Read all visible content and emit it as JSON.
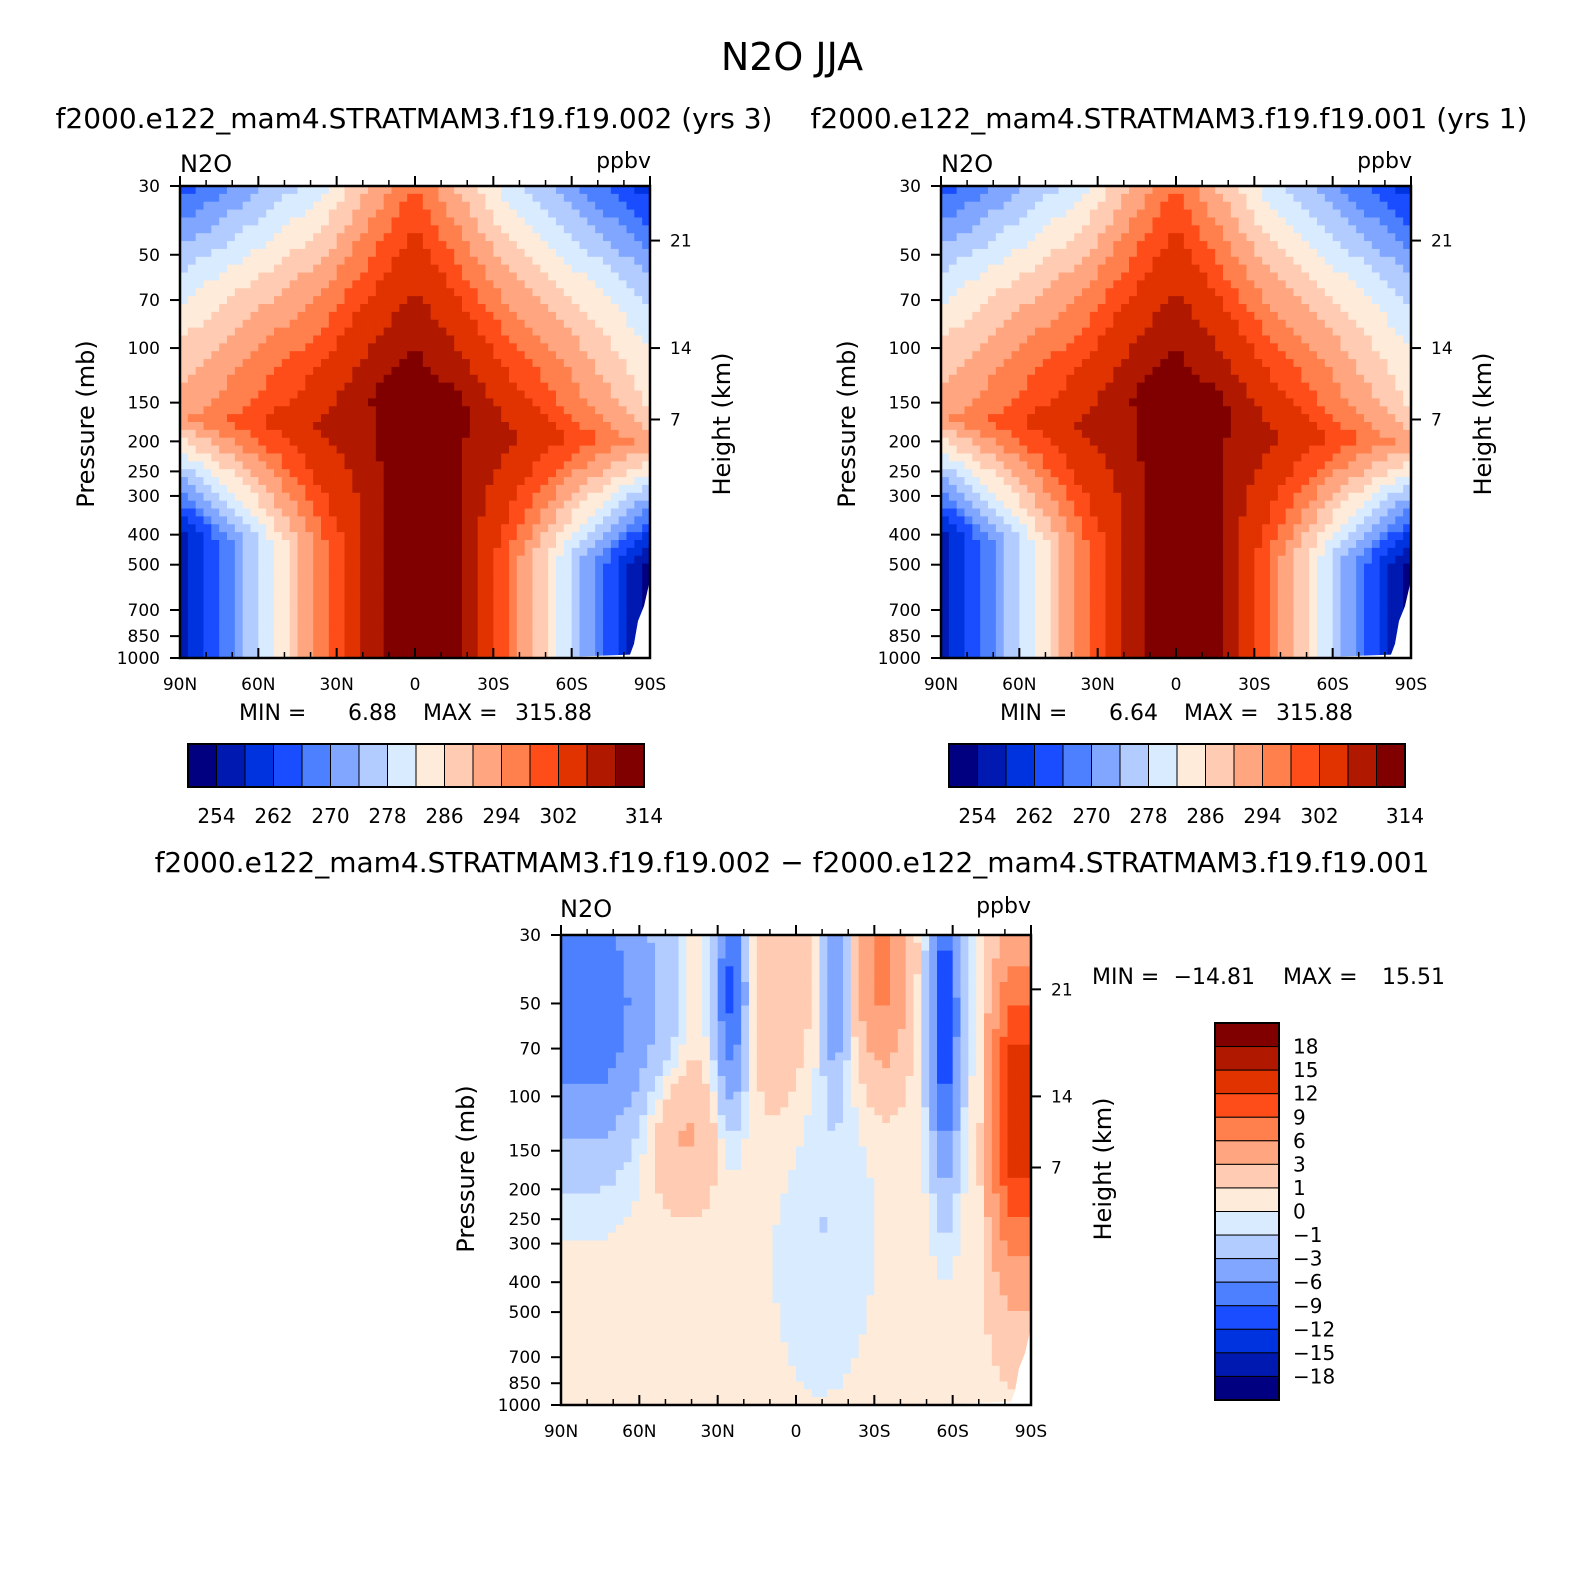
{
  "page": {
    "title": "N2O JJA"
  },
  "colors": {
    "abs_palette": [
      "#000080",
      "#0019b0",
      "#0033e0",
      "#1a4dff",
      "#4d80ff",
      "#80a6ff",
      "#b3ccff",
      "#d9ebff",
      "#ffebd9",
      "#ffccb3",
      "#ffa680",
      "#ff804d",
      "#ff4d1a",
      "#e03300",
      "#b01900",
      "#800000"
    ],
    "diff_palette": [
      "#000080",
      "#0019b0",
      "#0033e0",
      "#1a4dff",
      "#4d80ff",
      "#80a6ff",
      "#b3ccff",
      "#d9ebff",
      "#ffebd9",
      "#ffccb3",
      "#ffa680",
      "#ff804d",
      "#ff4d1a",
      "#e03300",
      "#b01900",
      "#800000"
    ]
  },
  "chart_data": [
    {
      "type": "heatmap",
      "id": "panel1",
      "title": "f2000.e122_mam4.STRATMAM3.f19.f19.002 (yrs 3)",
      "left_label": "N2O",
      "right_label": "ppbv",
      "ylabel": "Pressure (mb)",
      "ylabel_right": "Height (km)",
      "x_ticks": [
        "90N",
        "60N",
        "30N",
        "0",
        "30S",
        "60S",
        "90S"
      ],
      "y_ticks": [
        "30",
        "50",
        "70",
        "100",
        "150",
        "200",
        "250",
        "300",
        "400",
        "500",
        "700",
        "850",
        "1000"
      ],
      "height_ticks": [
        "21",
        "14",
        "7"
      ],
      "min_label": "MIN =",
      "max_label": "MAX =",
      "min": "6.88",
      "max": "315.88",
      "colorbar_labels": [
        "254",
        "262",
        "270",
        "278",
        "286",
        "294",
        "302",
        "314"
      ],
      "field": "n2o",
      "lat_range": [
        90,
        -90
      ],
      "p_range": [
        30,
        1000
      ]
    },
    {
      "type": "heatmap",
      "id": "panel2",
      "title": "f2000.e122_mam4.STRATMAM3.f19.f19.001 (yrs 1)",
      "left_label": "N2O",
      "right_label": "ppbv",
      "ylabel": "Pressure (mb)",
      "ylabel_right": "Height (km)",
      "x_ticks": [
        "90N",
        "60N",
        "30N",
        "0",
        "30S",
        "60S",
        "90S"
      ],
      "y_ticks": [
        "30",
        "50",
        "70",
        "100",
        "150",
        "200",
        "250",
        "300",
        "400",
        "500",
        "700",
        "850",
        "1000"
      ],
      "height_ticks": [
        "21",
        "14",
        "7"
      ],
      "min_label": "MIN =",
      "max_label": "MAX =",
      "min": "6.64",
      "max": "315.88",
      "colorbar_labels": [
        "254",
        "262",
        "270",
        "278",
        "286",
        "294",
        "302",
        "314"
      ],
      "field": "n2o",
      "lat_range": [
        90,
        -90
      ],
      "p_range": [
        30,
        1000
      ]
    },
    {
      "type": "heatmap",
      "id": "panel3",
      "title": "f2000.e122_mam4.STRATMAM3.f19.f19.002 − f2000.e122_mam4.STRATMAM3.f19.f19.001",
      "left_label": "N2O",
      "right_label": "ppbv",
      "ylabel": "Pressure (mb)",
      "ylabel_right": "Height (km)",
      "x_ticks": [
        "90N",
        "60N",
        "30N",
        "0",
        "30S",
        "60S",
        "90S"
      ],
      "y_ticks": [
        "30",
        "50",
        "70",
        "100",
        "150",
        "200",
        "250",
        "300",
        "400",
        "500",
        "700",
        "850",
        "1000"
      ],
      "height_ticks": [
        "21",
        "14",
        "7"
      ],
      "min_label": "MIN =",
      "max_label": "MAX =",
      "min": "−14.81",
      "max": "15.51",
      "colorbar_labels": [
        "18",
        "15",
        "12",
        "9",
        "6",
        "3",
        "1",
        "0",
        "−1",
        "−3",
        "−6",
        "−9",
        "−12",
        "−15",
        "−18"
      ],
      "field": "diff",
      "lat_range": [
        90,
        -90
      ],
      "p_range": [
        30,
        1000
      ]
    }
  ]
}
